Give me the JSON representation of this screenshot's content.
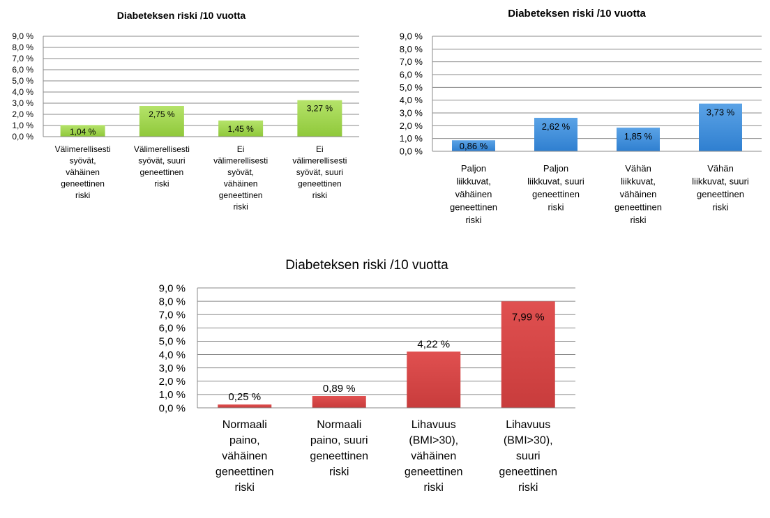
{
  "chart_data": [
    {
      "type": "bar",
      "title": "Diabeteksen riski /10 vuotta",
      "color": "#b5e36a",
      "color_dark": "#8fc83a",
      "ylim": [
        0,
        9
      ],
      "yticks": [
        "0,0 %",
        "1,0 %",
        "2,0 %",
        "3,0 %",
        "4,0 %",
        "5,0 %",
        "6,0 %",
        "7,0 %",
        "8,0 %",
        "9,0 %"
      ],
      "grid": true,
      "categories": [
        [
          "Välimerellisesti",
          "syövät,",
          "vähäinen",
          "geneettinen",
          "riski"
        ],
        [
          "Välimerellisesti",
          "syövät, suuri",
          "geneettinen",
          "riski"
        ],
        [
          "Ei",
          "välimerellisesti",
          "syövät,",
          "vähäinen",
          "geneettinen",
          "riski"
        ],
        [
          "Ei",
          "välimerellisesti",
          "syövät, suuri",
          "geneettinen",
          "riski"
        ]
      ],
      "values": [
        1.04,
        2.75,
        1.45,
        3.27
      ],
      "labels": [
        "1,04 %",
        "2,75 %",
        "1,45 %",
        "3,27 %"
      ]
    },
    {
      "type": "bar",
      "title": "Diabeteksen riski /10 vuotta",
      "color": "#5ba3e6",
      "color_dark": "#2f7fd0",
      "ylim": [
        0,
        9
      ],
      "yticks": [
        "0,0 %",
        "1,0 %",
        "2,0 %",
        "3,0 %",
        "4,0 %",
        "5,0 %",
        "6,0 %",
        "7,0 %",
        "8,0 %",
        "9,0 %"
      ],
      "grid": true,
      "categories": [
        [
          "Paljon",
          "liikkuvat,",
          "vähäinen",
          "geneettinen",
          "riski"
        ],
        [
          "Paljon",
          "liikkuvat, suuri",
          "geneettinen",
          "riski"
        ],
        [
          "Vähän",
          "liikkuvat,",
          "vähäinen",
          "geneettinen",
          "riski"
        ],
        [
          "Vähän",
          "liikkuvat, suuri",
          "geneettinen",
          "riski"
        ]
      ],
      "values": [
        0.86,
        2.62,
        1.85,
        3.73
      ],
      "labels": [
        "0,86 %",
        "2,62 %",
        "1,85 %",
        "3,73 %"
      ]
    },
    {
      "type": "bar",
      "title": "Diabeteksen riski /10 vuotta",
      "color": "#e05050",
      "color_dark": "#c83c3c",
      "ylim": [
        0,
        9
      ],
      "yticks": [
        "0,0 %",
        "1,0 %",
        "2,0 %",
        "3,0 %",
        "4,0 %",
        "5,0 %",
        "6,0 %",
        "7,0 %",
        "8,0 %",
        "9,0 %"
      ],
      "grid": true,
      "categories": [
        [
          "Normaali",
          "paino,",
          "vähäinen",
          "geneettinen",
          "riski"
        ],
        [
          "Normaali",
          "paino, suuri",
          "geneettinen",
          "riski"
        ],
        [
          "Lihavuus",
          "(BMI>30),",
          "vähäinen",
          "geneettinen",
          "riski"
        ],
        [
          "Lihavuus",
          "(BMI>30),",
          "suuri",
          "geneettinen",
          "riski"
        ]
      ],
      "values": [
        0.25,
        0.89,
        4.22,
        7.99
      ],
      "labels": [
        "0,25 %",
        "0,89 %",
        "4,22 %",
        "7,99 %"
      ]
    }
  ]
}
